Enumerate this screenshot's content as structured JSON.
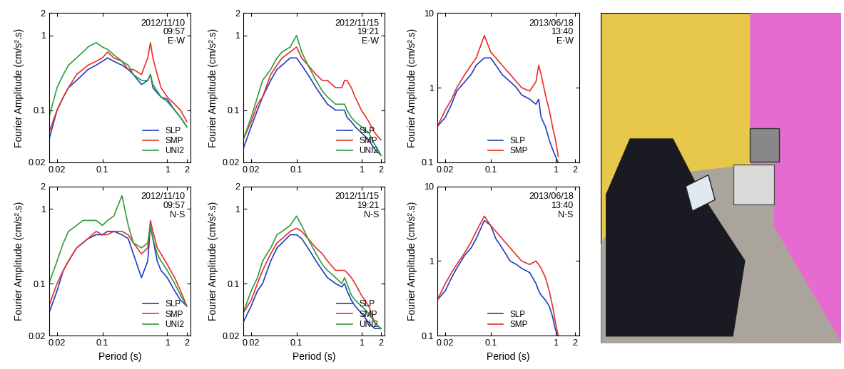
{
  "chart_data": [
    {
      "type": "line",
      "annotation": "2012/11/10\n09:57\nE-W",
      "y_label": "Fourier Amplitude (cm/s².s)",
      "log": true,
      "legend": "lower right",
      "xlim": [
        0.015,
        2.3
      ],
      "ylim": [
        0.02,
        2
      ],
      "xticks": [
        0.02,
        0.1,
        1,
        2
      ],
      "yticks": [
        0.02,
        0.1,
        1,
        2
      ],
      "x": [
        0.015,
        0.02,
        0.025,
        0.03,
        0.04,
        0.05,
        0.06,
        0.08,
        0.1,
        0.12,
        0.15,
        0.2,
        0.25,
        0.3,
        0.4,
        0.5,
        0.55,
        0.6,
        0.7,
        0.8,
        1.0,
        1.3,
        1.6,
        2.0
      ],
      "series": [
        {
          "name": "SLP",
          "color": "#1f3fbf",
          "values": [
            0.04,
            0.1,
            0.15,
            0.2,
            0.25,
            0.3,
            0.35,
            0.4,
            0.45,
            0.5,
            0.45,
            0.4,
            0.35,
            0.3,
            0.22,
            0.25,
            0.3,
            0.2,
            0.17,
            0.15,
            0.14,
            0.1,
            0.08,
            0.06
          ]
        },
        {
          "name": "SMP",
          "color": "#e8302a",
          "values": [
            0.05,
            0.1,
            0.15,
            0.2,
            0.3,
            0.35,
            0.4,
            0.45,
            0.5,
            0.6,
            0.5,
            0.45,
            0.35,
            0.35,
            0.3,
            0.5,
            0.8,
            0.5,
            0.3,
            0.2,
            0.15,
            0.12,
            0.1,
            0.07
          ]
        },
        {
          "name": "UNI2",
          "color": "#2e9e3e",
          "values": [
            0.08,
            0.2,
            0.3,
            0.4,
            0.5,
            0.6,
            0.7,
            0.8,
            0.7,
            0.65,
            0.55,
            0.45,
            0.4,
            0.3,
            0.25,
            0.25,
            0.3,
            0.22,
            0.18,
            0.15,
            0.13,
            0.1,
            0.08,
            0.06
          ]
        }
      ]
    },
    {
      "type": "line",
      "annotation": "2012/11/15\n19:21\nE-W",
      "y_label": "Fourier Amplitude (cm/s².s)",
      "log": true,
      "legend": "lower right",
      "xlim": [
        0.015,
        2.3
      ],
      "ylim": [
        0.02,
        2
      ],
      "xticks": [
        0.02,
        0.1,
        1,
        2
      ],
      "yticks": [
        0.02,
        0.1,
        1,
        2
      ],
      "x": [
        0.015,
        0.02,
        0.025,
        0.03,
        0.04,
        0.05,
        0.06,
        0.08,
        0.1,
        0.12,
        0.15,
        0.2,
        0.25,
        0.3,
        0.4,
        0.5,
        0.55,
        0.6,
        0.7,
        0.8,
        1.0,
        1.3,
        1.6,
        2.0
      ],
      "series": [
        {
          "name": "SLP",
          "color": "#1f3fbf",
          "values": [
            0.03,
            0.06,
            0.1,
            0.15,
            0.25,
            0.35,
            0.4,
            0.5,
            0.5,
            0.4,
            0.3,
            0.2,
            0.15,
            0.12,
            0.1,
            0.1,
            0.1,
            0.08,
            0.07,
            0.06,
            0.05,
            0.04,
            0.03,
            0.025
          ]
        },
        {
          "name": "SMP",
          "color": "#e8302a",
          "values": [
            0.04,
            0.07,
            0.12,
            0.15,
            0.3,
            0.4,
            0.5,
            0.6,
            0.7,
            0.5,
            0.4,
            0.3,
            0.25,
            0.25,
            0.2,
            0.2,
            0.25,
            0.25,
            0.2,
            0.15,
            0.1,
            0.07,
            0.05,
            0.04
          ]
        },
        {
          "name": "UNI2",
          "color": "#2e9e3e",
          "values": [
            0.04,
            0.08,
            0.15,
            0.25,
            0.35,
            0.5,
            0.6,
            0.7,
            1.0,
            0.6,
            0.4,
            0.25,
            0.18,
            0.15,
            0.12,
            0.12,
            0.12,
            0.1,
            0.08,
            0.07,
            0.06,
            0.05,
            0.035,
            0.025
          ]
        }
      ]
    },
    {
      "type": "line",
      "annotation": "2013/06/18\n13:40\nE-W",
      "y_label": "Fourier Amplitude (cm/s².s)",
      "log": true,
      "legend": "lower center",
      "xlim": [
        0.015,
        2.3
      ],
      "ylim": [
        0.1,
        10
      ],
      "xticks": [
        0.02,
        0.1,
        1,
        2
      ],
      "yticks": [
        0.1,
        1,
        10
      ],
      "x": [
        0.015,
        0.02,
        0.025,
        0.03,
        0.04,
        0.05,
        0.06,
        0.08,
        0.1,
        0.12,
        0.15,
        0.2,
        0.25,
        0.3,
        0.4,
        0.5,
        0.55,
        0.6,
        0.7,
        0.8,
        0.9,
        1.0,
        1.1
      ],
      "series": [
        {
          "name": "SLP",
          "color": "#1f3fbf",
          "values": [
            0.3,
            0.4,
            0.6,
            0.9,
            1.2,
            1.5,
            2.0,
            2.5,
            2.5,
            2.0,
            1.5,
            1.2,
            1.0,
            0.8,
            0.7,
            0.6,
            0.7,
            0.4,
            0.3,
            0.2,
            0.15,
            0.12,
            0.1
          ]
        },
        {
          "name": "SMP",
          "color": "#e8302a",
          "values": [
            0.3,
            0.5,
            0.7,
            1.0,
            1.5,
            2.0,
            2.5,
            5.0,
            3.0,
            2.5,
            2.0,
            1.5,
            1.2,
            1.0,
            0.9,
            1.2,
            2.0,
            1.5,
            0.8,
            0.5,
            0.3,
            0.2,
            0.12
          ]
        }
      ]
    },
    {
      "type": "line",
      "annotation": "2012/11/10\n09:57\nN-S",
      "y_label": "Fourier Amplitude (cm/s².s)",
      "x_label": "Period (s)",
      "log": true,
      "legend": "lower right",
      "xlim": [
        0.015,
        2.3
      ],
      "ylim": [
        0.02,
        2
      ],
      "xticks": [
        0.02,
        0.1,
        1,
        2
      ],
      "yticks": [
        0.02,
        0.1,
        1,
        2
      ],
      "x": [
        0.015,
        0.02,
        0.025,
        0.03,
        0.04,
        0.05,
        0.06,
        0.08,
        0.1,
        0.12,
        0.15,
        0.2,
        0.25,
        0.3,
        0.4,
        0.5,
        0.55,
        0.6,
        0.7,
        0.8,
        1.0,
        1.3,
        1.6,
        2.0
      ],
      "series": [
        {
          "name": "SLP",
          "color": "#1f3fbf",
          "values": [
            0.04,
            0.08,
            0.15,
            0.2,
            0.3,
            0.35,
            0.4,
            0.45,
            0.45,
            0.5,
            0.5,
            0.45,
            0.4,
            0.25,
            0.12,
            0.2,
            0.6,
            0.4,
            0.2,
            0.15,
            0.12,
            0.08,
            0.06,
            0.05
          ]
        },
        {
          "name": "SMP",
          "color": "#e8302a",
          "values": [
            0.05,
            0.1,
            0.15,
            0.2,
            0.3,
            0.35,
            0.4,
            0.5,
            0.45,
            0.45,
            0.5,
            0.5,
            0.45,
            0.35,
            0.25,
            0.3,
            0.7,
            0.5,
            0.3,
            0.25,
            0.18,
            0.12,
            0.08,
            0.05
          ]
        },
        {
          "name": "UNI2",
          "color": "#2e9e3e",
          "values": [
            0.1,
            0.2,
            0.35,
            0.5,
            0.6,
            0.7,
            0.7,
            0.7,
            0.6,
            0.7,
            0.8,
            1.5,
            0.6,
            0.35,
            0.3,
            0.35,
            0.6,
            0.4,
            0.25,
            0.2,
            0.15,
            0.1,
            0.07,
            0.05
          ]
        }
      ]
    },
    {
      "type": "line",
      "annotation": "2012/11/15\n19:21\nN-S",
      "y_label": "Fourier Amplitude (cm/s².s)",
      "x_label": "Period (s)",
      "log": true,
      "legend": "lower right",
      "xlim": [
        0.015,
        2.3
      ],
      "ylim": [
        0.02,
        2
      ],
      "xticks": [
        0.02,
        0.1,
        1,
        2
      ],
      "yticks": [
        0.02,
        0.1,
        1,
        2
      ],
      "x": [
        0.015,
        0.02,
        0.025,
        0.03,
        0.04,
        0.05,
        0.06,
        0.08,
        0.1,
        0.12,
        0.15,
        0.2,
        0.25,
        0.3,
        0.4,
        0.5,
        0.55,
        0.6,
        0.7,
        0.8,
        1.0,
        1.3,
        1.6,
        2.0
      ],
      "series": [
        {
          "name": "SLP",
          "color": "#1f3fbf",
          "values": [
            0.03,
            0.05,
            0.08,
            0.1,
            0.2,
            0.3,
            0.35,
            0.45,
            0.45,
            0.4,
            0.3,
            0.2,
            0.15,
            0.12,
            0.1,
            0.09,
            0.1,
            0.08,
            0.06,
            0.05,
            0.04,
            0.03,
            0.025,
            0.025
          ]
        },
        {
          "name": "SMP",
          "color": "#e8302a",
          "values": [
            0.04,
            0.06,
            0.1,
            0.15,
            0.25,
            0.35,
            0.4,
            0.5,
            0.55,
            0.5,
            0.4,
            0.3,
            0.25,
            0.2,
            0.15,
            0.15,
            0.15,
            0.14,
            0.12,
            0.1,
            0.07,
            0.05,
            0.03,
            0.025
          ]
        },
        {
          "name": "UNI2",
          "color": "#2e9e3e",
          "values": [
            0.04,
            0.08,
            0.12,
            0.2,
            0.3,
            0.45,
            0.5,
            0.6,
            0.8,
            0.6,
            0.4,
            0.25,
            0.18,
            0.15,
            0.12,
            0.1,
            0.12,
            0.1,
            0.07,
            0.06,
            0.05,
            0.04,
            0.03,
            0.025
          ]
        }
      ]
    },
    {
      "type": "line",
      "annotation": "2013/06/18\n13:40\nN-S",
      "y_label": "Fourier Amplitude (cm/s².s)",
      "x_label": "Period (s)",
      "log": true,
      "legend": "lower center",
      "xlim": [
        0.015,
        2.3
      ],
      "ylim": [
        0.1,
        10
      ],
      "xticks": [
        0.02,
        0.1,
        1,
        2
      ],
      "yticks": [
        0.1,
        1,
        10
      ],
      "x": [
        0.015,
        0.02,
        0.025,
        0.03,
        0.04,
        0.05,
        0.06,
        0.08,
        0.1,
        0.12,
        0.15,
        0.2,
        0.25,
        0.3,
        0.4,
        0.5,
        0.55,
        0.6,
        0.7,
        0.8,
        0.9,
        1.0,
        1.1
      ],
      "series": [
        {
          "name": "SLP",
          "color": "#1f3fbf",
          "values": [
            0.3,
            0.4,
            0.6,
            0.8,
            1.2,
            1.5,
            2.0,
            3.5,
            3.0,
            2.0,
            1.5,
            1.0,
            0.9,
            0.8,
            0.7,
            0.5,
            0.4,
            0.35,
            0.3,
            0.25,
            0.18,
            0.12,
            0.1
          ]
        },
        {
          "name": "SMP",
          "color": "#e8302a",
          "values": [
            0.3,
            0.5,
            0.7,
            0.9,
            1.3,
            1.8,
            2.5,
            4.0,
            3.0,
            2.5,
            2.0,
            1.5,
            1.2,
            1.0,
            0.9,
            1.0,
            0.9,
            0.8,
            0.6,
            0.4,
            0.25,
            0.15,
            0.1
          ]
        }
      ]
    }
  ]
}
